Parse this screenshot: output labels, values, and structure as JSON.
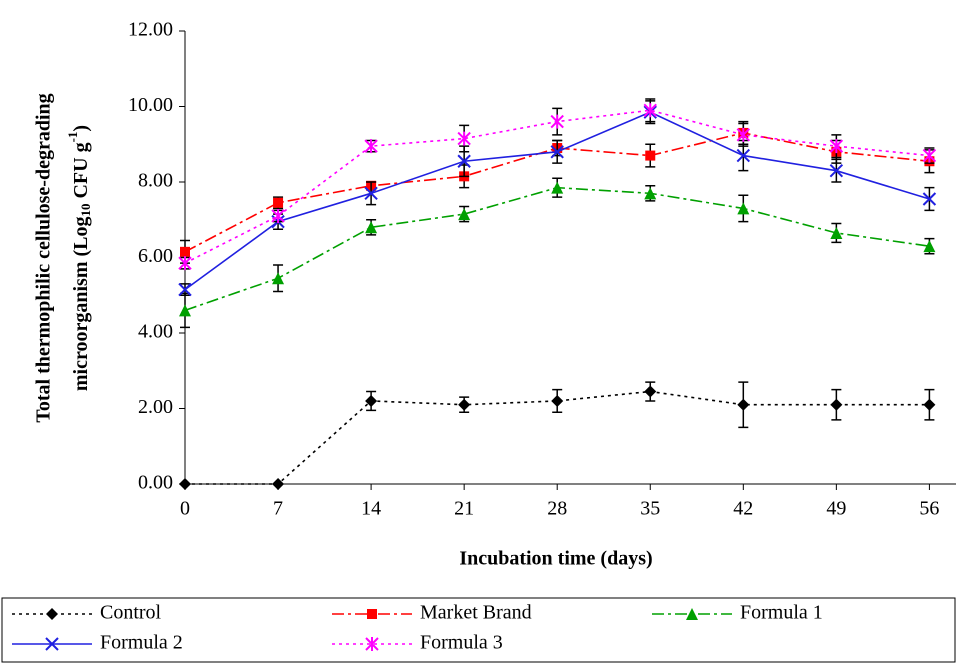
{
  "chart_data": {
    "type": "line",
    "ylabel_line1": "Total thermophilic cellulose-degrading",
    "ylabel_line2": {
      "main": "microorganism (Log",
      "sub": "10",
      "mid": " CFU g",
      "sup": "-1",
      "end": ")"
    },
    "xlabel": "Incubation time (days)",
    "x": [
      0,
      7,
      14,
      21,
      28,
      35,
      42,
      49,
      56
    ],
    "xlim": [
      0,
      58
    ],
    "xticks": [
      0,
      7,
      14,
      21,
      28,
      35,
      42,
      49,
      56
    ],
    "ylim": [
      0,
      12
    ],
    "yticks": [
      {
        "value": 0,
        "label": "0.00"
      },
      {
        "value": 2,
        "label": "2.00"
      },
      {
        "value": 4,
        "label": "4.00"
      },
      {
        "value": 6,
        "label": "6.00"
      },
      {
        "value": 8,
        "label": "8.00"
      },
      {
        "value": 10,
        "label": "10.00"
      },
      {
        "value": 12,
        "label": "12.00"
      }
    ],
    "series": [
      {
        "name": "Control",
        "color": "#000000",
        "marker": "diamond",
        "dash": "3,4",
        "values": [
          0,
          0,
          2.2,
          2.1,
          2.2,
          2.45,
          2.1,
          2.1,
          2.1
        ],
        "errors": [
          0,
          0,
          0.25,
          0.2,
          0.3,
          0.25,
          0.6,
          0.4,
          0.4
        ]
      },
      {
        "name": "Market Brand",
        "color": "#ff0000",
        "marker": "square",
        "dash": "12,4,3,4",
        "values": [
          6.15,
          7.45,
          7.9,
          8.15,
          8.9,
          8.7,
          9.3,
          8.8,
          8.55
        ],
        "errors": [
          0.3,
          0.15,
          0.1,
          0.3,
          0.2,
          0.3,
          0.3,
          0.3,
          0.3
        ]
      },
      {
        "name": "Formula 1",
        "color": "#00a000",
        "marker": "triangle",
        "dash": "12,4,3,4",
        "values": [
          4.6,
          5.45,
          6.8,
          7.15,
          7.85,
          7.7,
          7.3,
          6.65,
          6.3
        ],
        "errors": [
          0.45,
          0.35,
          0.2,
          0.2,
          0.25,
          0.2,
          0.35,
          0.25,
          0.2
        ]
      },
      {
        "name": "Formula 2",
        "color": "#2020e0",
        "marker": "x",
        "dash": "",
        "values": [
          5.15,
          6.95,
          7.7,
          8.55,
          8.8,
          9.85,
          8.7,
          8.3,
          7.55
        ],
        "errors": [
          0.15,
          0.2,
          0.3,
          0.4,
          0.3,
          0.3,
          0.4,
          0.3,
          0.3
        ]
      },
      {
        "name": "Formula 3",
        "color": "#ff00ff",
        "marker": "star",
        "dash": "3,4",
        "values": [
          5.85,
          7.1,
          8.95,
          9.15,
          9.6,
          9.9,
          9.25,
          8.95,
          8.7
        ],
        "errors": [
          0.15,
          0.15,
          0.15,
          0.35,
          0.35,
          0.3,
          0.3,
          0.3,
          0.2
        ]
      }
    ]
  }
}
